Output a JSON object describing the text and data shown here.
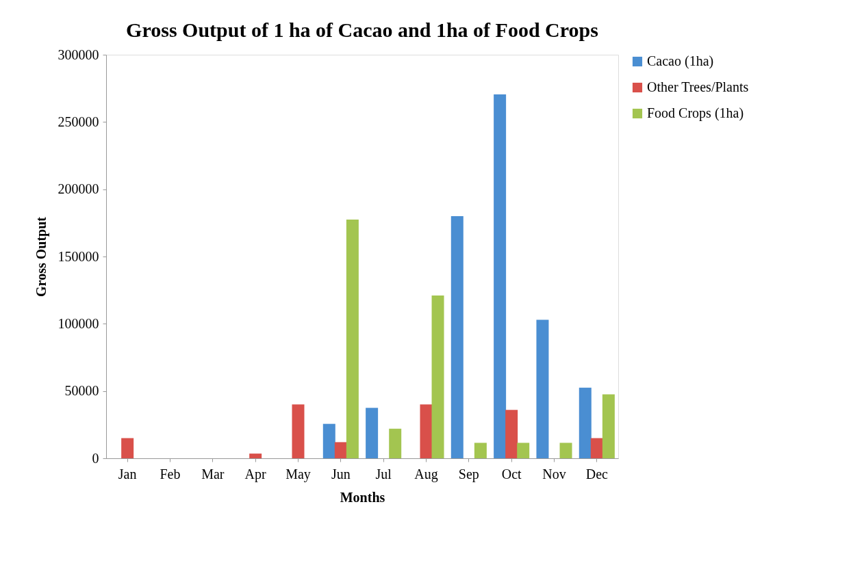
{
  "chart_data": {
    "type": "bar",
    "title": "Gross Output of 1 ha of Cacao and 1ha of Food Crops",
    "xlabel": "Months",
    "ylabel": "Gross Output",
    "categories": [
      "Jan",
      "Feb",
      "Mar",
      "Apr",
      "May",
      "Jun",
      "Jul",
      "Aug",
      "Sep",
      "Oct",
      "Nov",
      "Dec"
    ],
    "series": [
      {
        "name": "Cacao (1ha)",
        "color": "#4a8ed2",
        "values": [
          null,
          null,
          null,
          null,
          null,
          25600,
          37500,
          null,
          180000,
          270500,
          103000,
          52500
        ]
      },
      {
        "name": "Other Trees/Plants",
        "color": "#d9504a",
        "values": [
          15000,
          null,
          null,
          3500,
          40000,
          12000,
          null,
          40000,
          null,
          36000,
          null,
          15000
        ]
      },
      {
        "name": "Food Crops (1ha)",
        "color": "#a3c550",
        "values": [
          null,
          null,
          null,
          null,
          null,
          177500,
          22000,
          121000,
          11500,
          11500,
          11500,
          47500
        ]
      }
    ],
    "ylim": [
      0,
      300000
    ],
    "yticks": [
      0,
      50000,
      100000,
      150000,
      200000,
      250000,
      300000
    ],
    "grid": false,
    "legend": "right"
  }
}
